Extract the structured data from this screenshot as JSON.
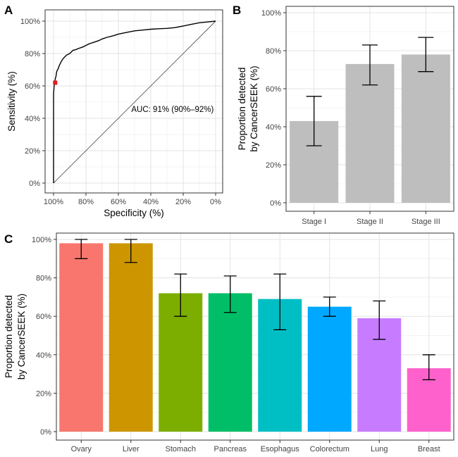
{
  "chart_data": [
    {
      "panel": "A",
      "type": "line",
      "xlabel": "Specificity (%)",
      "ylabel": "Sensitivity (%)",
      "x_ticks": [
        "100%",
        "80%",
        "60%",
        "40%",
        "20%",
        "0%"
      ],
      "y_ticks": [
        "0%",
        "20%",
        "40%",
        "60%",
        "80%",
        "100%"
      ],
      "xlim": [
        100,
        0
      ],
      "ylim": [
        0,
        100
      ],
      "annotation": "AUC: 91% (90%–92%)",
      "roc_curve": {
        "specificity": [
          100,
          100,
          99.8,
          99.6,
          99.5,
          99.3,
          99.2,
          99,
          98.8,
          98.5,
          98.2,
          98,
          97.5,
          97,
          96.5,
          96,
          95.5,
          95,
          94,
          93,
          92,
          90,
          89,
          88,
          86,
          85,
          82,
          80,
          78,
          75,
          72,
          70,
          67,
          63,
          60,
          55,
          50,
          45,
          40,
          35,
          30,
          25,
          20,
          15,
          10,
          5,
          0
        ],
        "sensitivity": [
          0,
          55,
          58,
          60,
          61,
          62,
          63,
          64,
          65,
          66,
          68,
          69,
          70,
          71,
          72.5,
          73.5,
          74.5,
          75.5,
          77,
          78,
          79,
          80,
          81,
          82,
          82.5,
          83,
          84,
          85,
          86,
          87,
          88,
          89,
          90,
          91,
          92,
          93,
          94,
          94.5,
          95,
          95.3,
          95.5,
          96,
          97,
          98,
          99,
          99.5,
          100
        ]
      },
      "diagonal": {
        "specificity": [
          100,
          0
        ],
        "sensitivity": [
          0,
          100
        ]
      },
      "marker": {
        "specificity": 99,
        "sensitivity": 62,
        "color": "#e41a1c"
      }
    },
    {
      "panel": "B",
      "type": "bar",
      "categories": [
        "Stage I",
        "Stage II",
        "Stage III"
      ],
      "values": [
        43,
        73,
        78
      ],
      "error_low": [
        30,
        62,
        69
      ],
      "error_high": [
        56,
        83,
        87
      ],
      "ylabel": "Proportion detected by CancerSEEK (%)",
      "ylabel_lines": [
        "Proportion detected",
        "by CancerSEEK (%)"
      ],
      "y_ticks": [
        "0%",
        "20%",
        "40%",
        "60%",
        "80%",
        "100%"
      ],
      "ylim": [
        0,
        100
      ],
      "bar_color": "#bebebe"
    },
    {
      "panel": "C",
      "type": "bar",
      "categories": [
        "Ovary",
        "Liver",
        "Stomach",
        "Pancreas",
        "Esophagus",
        "Colorectum",
        "Lung",
        "Breast"
      ],
      "values": [
        98,
        98,
        72,
        72,
        69,
        65,
        59,
        33
      ],
      "error_low": [
        90,
        88,
        60,
        62,
        53,
        60,
        48,
        27
      ],
      "error_high": [
        100,
        100,
        82,
        81,
        82,
        70,
        68,
        40
      ],
      "ylabel": "Proportion detected by CancerSEEK (%)",
      "ylabel_lines": [
        "Proportion detected",
        "by CancerSEEK (%)"
      ],
      "y_ticks": [
        "0%",
        "20%",
        "40%",
        "60%",
        "80%",
        "100%"
      ],
      "ylim": [
        0,
        100
      ],
      "colors": [
        "#f8766d",
        "#cd9600",
        "#7cae00",
        "#00be67",
        "#00bfc4",
        "#00a9ff",
        "#c77cff",
        "#ff61cc"
      ]
    }
  ],
  "panels": {
    "a_label": "A",
    "b_label": "B",
    "c_label": "C"
  }
}
